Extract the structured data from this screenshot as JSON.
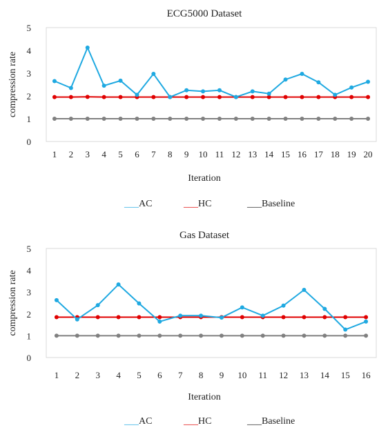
{
  "chart_data": [
    {
      "type": "line",
      "title": "ECG5000 Dataset",
      "xlabel": "Iteration",
      "ylabel": "compression rate",
      "ylim": [
        0,
        5
      ],
      "yticks": [
        0,
        1,
        2,
        3,
        4,
        5
      ],
      "grid": false,
      "legend_position": "bottom",
      "x": [
        "1",
        "2",
        "3",
        "4",
        "5",
        "6",
        "7",
        "8",
        "9",
        "10",
        "11",
        "12",
        "13",
        "14",
        "15",
        "16",
        "17",
        "18",
        "19",
        "20"
      ],
      "series": [
        {
          "name": "AC",
          "color": "#1fa9e1",
          "values": [
            2.65,
            2.35,
            4.12,
            2.45,
            2.67,
            2.05,
            2.97,
            1.95,
            2.25,
            2.2,
            2.25,
            1.95,
            2.2,
            2.1,
            2.72,
            2.97,
            2.6,
            2.05,
            2.37,
            2.62
          ]
        },
        {
          "name": "HC",
          "color": "#e00000",
          "values": [
            1.95,
            1.95,
            1.96,
            1.95,
            1.95,
            1.95,
            1.95,
            1.95,
            1.95,
            1.95,
            1.95,
            1.95,
            1.95,
            1.95,
            1.95,
            1.95,
            1.95,
            1.95,
            1.95,
            1.95
          ]
        },
        {
          "name": "Baseline",
          "color": "#808080",
          "values": [
            1,
            1,
            1,
            1,
            1,
            1,
            1,
            1,
            1,
            1,
            1,
            1,
            1,
            1,
            1,
            1,
            1,
            1,
            1,
            1
          ]
        }
      ],
      "legend": [
        {
          "key": "___",
          "label": "AC",
          "color": "#1fa9e1"
        },
        {
          "key": "___",
          "label": "HC",
          "color": "#e00000"
        },
        {
          "key": "___",
          "label": "Baseline",
          "color": "#222222"
        }
      ]
    },
    {
      "type": "line",
      "title": "Gas Dataset",
      "xlabel": "Iteration",
      "ylabel": "compression rate",
      "ylim": [
        0,
        5
      ],
      "yticks": [
        0,
        1,
        2,
        3,
        4,
        5
      ],
      "grid": false,
      "legend_position": "bottom",
      "x": [
        "1",
        "2",
        "3",
        "4",
        "5",
        "6",
        "7",
        "8",
        "9",
        "10",
        "11",
        "12",
        "13",
        "14",
        "15",
        "16"
      ],
      "series": [
        {
          "name": "AC",
          "color": "#1fa9e1",
          "values": [
            2.63,
            1.75,
            2.4,
            3.35,
            2.48,
            1.65,
            1.92,
            1.92,
            1.83,
            2.3,
            1.92,
            2.38,
            3.1,
            2.23,
            1.28,
            1.65
          ]
        },
        {
          "name": "HC",
          "color": "#e00000",
          "values": [
            1.85,
            1.85,
            1.85,
            1.85,
            1.85,
            1.85,
            1.85,
            1.85,
            1.85,
            1.85,
            1.85,
            1.85,
            1.85,
            1.85,
            1.85,
            1.85
          ]
        },
        {
          "name": "Baseline",
          "color": "#808080",
          "values": [
            1,
            1,
            1,
            1,
            1,
            1,
            1,
            1,
            1,
            1,
            1,
            1,
            1,
            1,
            1,
            1
          ]
        }
      ],
      "legend": [
        {
          "key": "___",
          "label": "AC",
          "color": "#1fa9e1"
        },
        {
          "key": "___",
          "label": "HC",
          "color": "#e00000"
        },
        {
          "key": "___",
          "label": "Baseline",
          "color": "#222222"
        }
      ]
    }
  ]
}
